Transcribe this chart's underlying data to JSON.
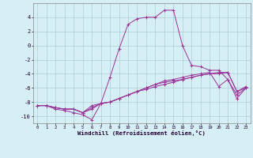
{
  "title": "",
  "xlabel": "Windchill (Refroidissement éolien,°C)",
  "ylabel": "",
  "bg_color": "#d6eef5",
  "line_color": "#993399",
  "grid_color": "#b0ccd6",
  "xlim": [
    -0.5,
    23.5
  ],
  "ylim": [
    -11,
    6
  ],
  "yticks": [
    -10,
    -8,
    -6,
    -4,
    -2,
    0,
    2,
    4
  ],
  "xticks": [
    0,
    1,
    2,
    3,
    4,
    5,
    6,
    7,
    8,
    9,
    10,
    11,
    12,
    13,
    14,
    15,
    16,
    17,
    18,
    19,
    20,
    21,
    22,
    23
  ],
  "lines": [
    {
      "x": [
        0,
        1,
        2,
        3,
        4,
        5,
        6,
        7,
        8,
        9,
        10,
        11,
        12,
        13,
        14,
        15,
        16,
        17,
        18,
        19,
        20,
        21,
        22,
        23
      ],
      "y": [
        -8.5,
        -8.5,
        -9.0,
        -9.2,
        -9.5,
        -9.8,
        -10.5,
        -8.2,
        -4.5,
        -0.5,
        3.0,
        3.8,
        4.0,
        4.0,
        5.0,
        5.0,
        0.0,
        -2.8,
        -3.0,
        -3.5,
        -3.5,
        -4.8,
        -7.5,
        -6.0
      ]
    },
    {
      "x": [
        0,
        1,
        2,
        3,
        4,
        5,
        6,
        7,
        8,
        9,
        10,
        11,
        12,
        13,
        14,
        15,
        16,
        17,
        18,
        19,
        20,
        21,
        22,
        23
      ],
      "y": [
        -8.5,
        -8.5,
        -8.8,
        -9.0,
        -9.0,
        -9.5,
        -9.0,
        -8.2,
        -8.0,
        -7.5,
        -7.0,
        -6.5,
        -6.0,
        -5.5,
        -5.0,
        -4.8,
        -4.5,
        -4.2,
        -4.0,
        -3.8,
        -5.8,
        -4.8,
        -7.0,
        -6.0
      ]
    },
    {
      "x": [
        0,
        1,
        2,
        3,
        4,
        5,
        6,
        7,
        8,
        9,
        10,
        11,
        12,
        13,
        14,
        15,
        16,
        17,
        18,
        19,
        20,
        21,
        22,
        23
      ],
      "y": [
        -8.5,
        -8.5,
        -8.8,
        -9.0,
        -9.0,
        -9.5,
        -8.8,
        -8.2,
        -8.0,
        -7.5,
        -7.0,
        -6.5,
        -6.0,
        -5.5,
        -5.2,
        -5.0,
        -4.8,
        -4.5,
        -4.2,
        -4.0,
        -4.0,
        -3.8,
        -6.5,
        -5.8
      ]
    },
    {
      "x": [
        0,
        1,
        2,
        3,
        4,
        5,
        6,
        7,
        8,
        9,
        10,
        11,
        12,
        13,
        14,
        15,
        16,
        17,
        18,
        19,
        20,
        21,
        22,
        23
      ],
      "y": [
        -8.5,
        -8.5,
        -8.8,
        -9.0,
        -9.0,
        -9.5,
        -8.5,
        -8.2,
        -8.0,
        -7.5,
        -7.0,
        -6.5,
        -6.2,
        -5.8,
        -5.5,
        -5.2,
        -4.8,
        -4.5,
        -4.2,
        -4.0,
        -3.8,
        -3.8,
        -6.5,
        -6.0
      ]
    }
  ]
}
